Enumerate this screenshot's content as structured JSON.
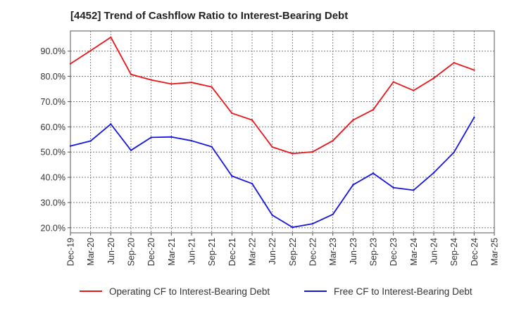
{
  "chart_data": {
    "type": "line",
    "title": "[4452]  Trend of Cashflow Ratio to Interest-Bearing Debt",
    "xlabel": "",
    "ylabel": "",
    "categories": [
      "Dec-19",
      "Mar-20",
      "Jun-20",
      "Sep-20",
      "Dec-20",
      "Mar-21",
      "Jun-21",
      "Sep-21",
      "Dec-21",
      "Mar-22",
      "Jun-22",
      "Sep-22",
      "Dec-22",
      "Mar-23",
      "Jun-23",
      "Sep-23",
      "Dec-23",
      "Mar-24",
      "Jun-24",
      "Sep-24",
      "Dec-24",
      "Mar-25"
    ],
    "ylim": [
      18,
      98
    ],
    "yticks": [
      20,
      30,
      40,
      50,
      60,
      70,
      80,
      90
    ],
    "ytick_labels": [
      "20.0%",
      "30.0%",
      "40.0%",
      "50.0%",
      "60.0%",
      "70.0%",
      "80.0%",
      "90.0%"
    ],
    "grid": true,
    "legend": "bottom",
    "series": [
      {
        "name": "Operating CF to Interest-Bearing Debt",
        "color": "#e8161b",
        "values": [
          85.0,
          90.2,
          95.5,
          80.8,
          78.6,
          77.0,
          77.6,
          75.8,
          65.4,
          62.7,
          52.0,
          49.4,
          50.1,
          54.5,
          62.7,
          66.8,
          77.8,
          74.4,
          79.3,
          85.4,
          82.5,
          null
        ]
      },
      {
        "name": "Free CF to Interest-Bearing Debt",
        "color": "#1515e0",
        "values": [
          52.4,
          54.4,
          61.1,
          50.7,
          55.8,
          56.0,
          54.5,
          52.1,
          40.5,
          37.5,
          25.0,
          20.2,
          21.6,
          25.3,
          37.0,
          41.6,
          35.9,
          34.9,
          41.8,
          49.9,
          63.7,
          null
        ]
      }
    ]
  }
}
